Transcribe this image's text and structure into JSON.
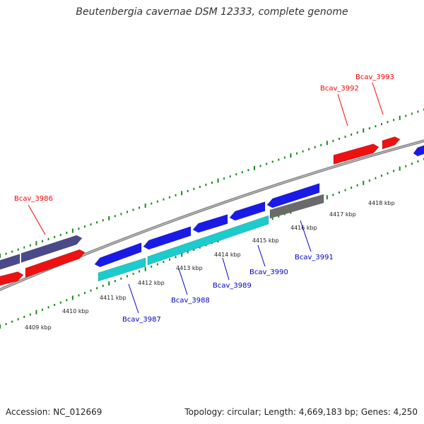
{
  "title": "Beutenbergia cavernae DSM 12333, complete genome",
  "accession": "Accession: NC_012669",
  "summary": "Topology: circular; Length: 4,669,183 bp; Genes: 4,250",
  "colors": {
    "forward_gene_label": "#ff0000",
    "reverse_gene_label": "#0000cc",
    "backbone": "#888888",
    "tick": "#1a8a1a",
    "gene_red": "#ee1111",
    "gene_blue": "#1a1ae8",
    "gene_navy": "#4a4a8a",
    "gene_cyan": "#1ccccc",
    "gene_gray": "#6a6a6a"
  },
  "kbp_labels": [
    "4409 kbp",
    "4410 kbp",
    "4411 kbp",
    "4412 kbp",
    "4413 kbp",
    "4414 kbp",
    "4415 kbp",
    "4416 kbp",
    "4417 kbp",
    "4418 kbp"
  ],
  "gene_labels": [
    {
      "text": "Bcav_3986",
      "strand": "forward"
    },
    {
      "text": "Bcav_3992",
      "strand": "forward"
    },
    {
      "text": "Bcav_3993",
      "strand": "forward"
    },
    {
      "text": "Bcav_3987",
      "strand": "reverse"
    },
    {
      "text": "Bcav_3988",
      "strand": "reverse"
    },
    {
      "text": "Bcav_3989",
      "strand": "reverse"
    },
    {
      "text": "Bcav_3990",
      "strand": "reverse"
    },
    {
      "text": "Bcav_3991",
      "strand": "reverse"
    }
  ]
}
